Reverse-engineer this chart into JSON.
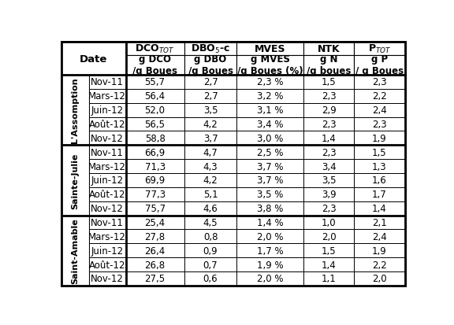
{
  "col_headers_line1": [
    "DCO$_{TOT}$",
    "DBO$_5$-c",
    "MVES",
    "NTK",
    "P$_{TOT}$"
  ],
  "col_headers_line2": [
    "g DCO\n/g Boues",
    "g DBO\n/g Boues",
    "g MVES\n/g Boues (%)",
    "g N\n/g boues",
    "g P\n/ g Boues"
  ],
  "row_groups": [
    {
      "group_label": "L'Assomption",
      "rows": [
        {
          "date": "Nov-11",
          "values": [
            "55,7",
            "2,7",
            "2,3 %",
            "1,5",
            "2,3"
          ]
        },
        {
          "date": "Mars-12",
          "values": [
            "56,4",
            "2,7",
            "3,2 %",
            "2,3",
            "2,2"
          ]
        },
        {
          "date": "Juin-12",
          "values": [
            "52,0",
            "3,5",
            "3,1 %",
            "2,9",
            "2,4"
          ]
        },
        {
          "date": "Août-12",
          "values": [
            "56,5",
            "4,2",
            "3,4 %",
            "2,3",
            "2,3"
          ]
        },
        {
          "date": "Nov-12",
          "values": [
            "58,8",
            "3,7",
            "3,0 %",
            "1,4",
            "1,9"
          ]
        }
      ]
    },
    {
      "group_label": "Sainte-Julie",
      "rows": [
        {
          "date": "Nov-11",
          "values": [
            "66,9",
            "4,7",
            "2,5 %",
            "2,3",
            "1,5"
          ]
        },
        {
          "date": "Mars-12",
          "values": [
            "71,3",
            "4,3",
            "3,7 %",
            "3,4",
            "1,3"
          ]
        },
        {
          "date": "Juin-12",
          "values": [
            "69,9",
            "4,2",
            "3,7 %",
            "3,5",
            "1,6"
          ]
        },
        {
          "date": "Août-12",
          "values": [
            "77,3",
            "5,1",
            "3,5 %",
            "3,9",
            "1,7"
          ]
        },
        {
          "date": "Nov-12",
          "values": [
            "75,7",
            "4,6",
            "3,8 %",
            "2,3",
            "1,4"
          ]
        }
      ]
    },
    {
      "group_label": "Saint-Amable",
      "rows": [
        {
          "date": "Nov-11",
          "values": [
            "25,4",
            "4,5",
            "1,4 %",
            "1,0",
            "2,1"
          ]
        },
        {
          "date": "Mars-12",
          "values": [
            "27,8",
            "0,8",
            "2,0 %",
            "2,0",
            "2,4"
          ]
        },
        {
          "date": "Juin-12",
          "values": [
            "26,4",
            "0,9",
            "1,7 %",
            "1,5",
            "1,9"
          ]
        },
        {
          "date": "Août-12",
          "values": [
            "26,8",
            "0,7",
            "1,9 %",
            "1,4",
            "2,2"
          ]
        },
        {
          "date": "Nov-12",
          "values": [
            "27,5",
            "0,6",
            "2,0 %",
            "1,1",
            "2,0"
          ]
        }
      ]
    }
  ],
  "bg_color": "#ffffff",
  "text_color": "#000000",
  "figw": 5.76,
  "figh": 4.14,
  "dpi": 100
}
